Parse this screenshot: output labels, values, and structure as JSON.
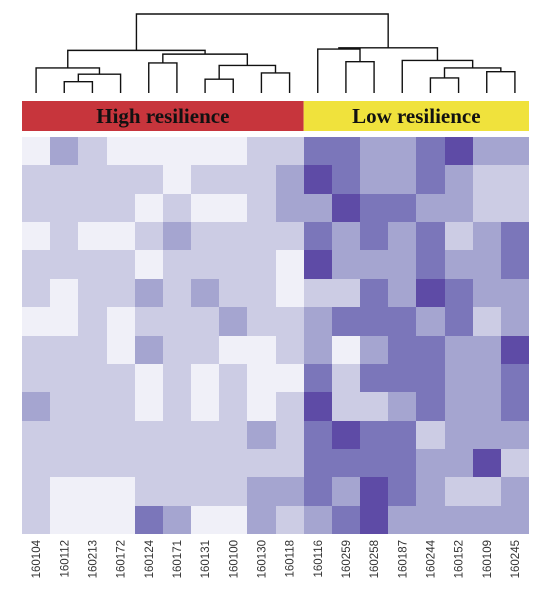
{
  "chart_data": {
    "type": "heatmap",
    "title": "",
    "groups": [
      {
        "label": "High resilience",
        "color": "#c7353c",
        "label_color": "#111111",
        "start": 0,
        "count": 10
      },
      {
        "label": "Low resilience",
        "color": "#f0e23c",
        "label_color": "#111111",
        "start": 10,
        "count": 8
      }
    ],
    "columns": [
      "160104",
      "160112",
      "160213",
      "160172",
      "160124",
      "160171",
      "160131",
      "160100",
      "160130",
      "160118",
      "160116",
      "160259",
      "160258",
      "160187",
      "160244",
      "160152",
      "160109",
      "160245"
    ],
    "levels": 5,
    "color_scale": [
      "#f0f0f8",
      "#cccce4",
      "#a5a5d0",
      "#7b76ba",
      "#5e4ba6"
    ],
    "values": [
      [
        0,
        2,
        1,
        0,
        0,
        0,
        0,
        0,
        1,
        1,
        3,
        3,
        2,
        2,
        3,
        4,
        2,
        2
      ],
      [
        1,
        1,
        1,
        1,
        1,
        0,
        1,
        1,
        1,
        2,
        4,
        3,
        2,
        2,
        3,
        2,
        1,
        1
      ],
      [
        1,
        1,
        1,
        1,
        0,
        1,
        0,
        0,
        1,
        2,
        2,
        4,
        3,
        3,
        2,
        2,
        1,
        1
      ],
      [
        0,
        1,
        0,
        0,
        1,
        2,
        1,
        1,
        1,
        1,
        3,
        2,
        3,
        2,
        3,
        1,
        2,
        3
      ],
      [
        1,
        1,
        1,
        1,
        0,
        1,
        1,
        1,
        1,
        0,
        4,
        2,
        2,
        2,
        3,
        2,
        2,
        3
      ],
      [
        1,
        0,
        1,
        1,
        2,
        1,
        2,
        1,
        1,
        0,
        1,
        1,
        3,
        2,
        4,
        3,
        2,
        2
      ],
      [
        0,
        0,
        1,
        0,
        1,
        1,
        1,
        2,
        1,
        1,
        2,
        3,
        3,
        3,
        2,
        3,
        1,
        2
      ],
      [
        1,
        1,
        1,
        0,
        2,
        1,
        1,
        0,
        0,
        1,
        2,
        0,
        2,
        3,
        3,
        2,
        2,
        4
      ],
      [
        1,
        1,
        1,
        1,
        0,
        1,
        0,
        1,
        0,
        0,
        3,
        1,
        3,
        3,
        3,
        2,
        2,
        3
      ],
      [
        2,
        1,
        1,
        1,
        0,
        1,
        0,
        1,
        0,
        1,
        4,
        1,
        1,
        2,
        3,
        2,
        2,
        3
      ],
      [
        1,
        1,
        1,
        1,
        1,
        1,
        1,
        1,
        2,
        1,
        3,
        4,
        3,
        3,
        1,
        2,
        2,
        2
      ],
      [
        1,
        1,
        1,
        1,
        1,
        1,
        1,
        1,
        1,
        1,
        3,
        3,
        3,
        3,
        2,
        2,
        4,
        1
      ],
      [
        1,
        0,
        0,
        0,
        1,
        1,
        1,
        1,
        2,
        2,
        3,
        2,
        4,
        3,
        2,
        1,
        1,
        2
      ],
      [
        1,
        0,
        0,
        0,
        3,
        2,
        0,
        0,
        2,
        1,
        2,
        3,
        4,
        2,
        2,
        2,
        2,
        2
      ]
    ],
    "dendrogram": {
      "nodes": [
        {
          "left": 1,
          "right": 2,
          "height": 0.9
        },
        {
          "left": 18,
          "right": 3,
          "height": 1.5
        },
        {
          "left": 0,
          "right": 19,
          "height": 2.0
        },
        {
          "left": 6,
          "right": 7,
          "height": 1.1
        },
        {
          "left": 8,
          "right": 9,
          "height": 1.6
        },
        {
          "left": 21,
          "right": 22,
          "height": 2.2
        },
        {
          "left": 4,
          "right": 5,
          "height": 2.4
        },
        {
          "left": 24,
          "right": 23,
          "height": 3.1
        },
        {
          "left": 20,
          "right": 25,
          "height": 3.4
        },
        {
          "left": 11,
          "right": 12,
          "height": 2.5
        },
        {
          "left": 10,
          "right": 27,
          "height": 3.5
        },
        {
          "left": 14,
          "right": 15,
          "height": 1.2
        },
        {
          "left": 16,
          "right": 17,
          "height": 1.7
        },
        {
          "left": 29,
          "right": 30,
          "height": 2.0
        },
        {
          "left": 13,
          "right": 31,
          "height": 2.6
        },
        {
          "left": 28,
          "right": 32,
          "height": 3.6
        },
        {
          "left": 26,
          "right": 33,
          "height": 6.3
        }
      ]
    }
  }
}
